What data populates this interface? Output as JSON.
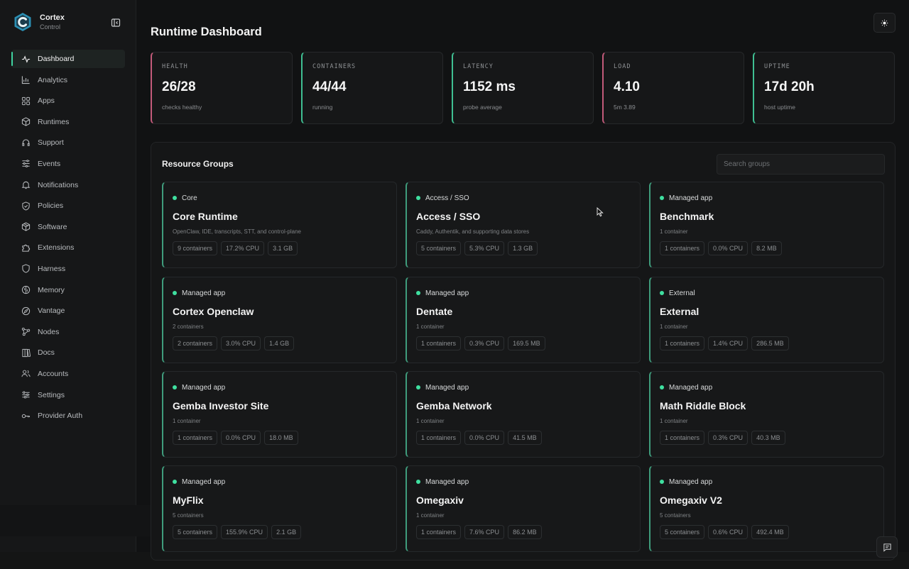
{
  "app": {
    "name": "Cortex",
    "subtitle": "Control"
  },
  "sidebar": {
    "items": [
      {
        "label": "Dashboard",
        "icon": "activity-icon",
        "active": true
      },
      {
        "label": "Analytics",
        "icon": "chart-icon"
      },
      {
        "label": "Apps",
        "icon": "grid-icon"
      },
      {
        "label": "Runtimes",
        "icon": "box-icon"
      },
      {
        "label": "Support",
        "icon": "headset-icon"
      },
      {
        "label": "Events",
        "icon": "filter-lines-icon"
      },
      {
        "label": "Notifications",
        "icon": "bell-icon"
      },
      {
        "label": "Policies",
        "icon": "shield-check-icon"
      },
      {
        "label": "Software",
        "icon": "package-icon"
      },
      {
        "label": "Extensions",
        "icon": "puzzle-icon"
      },
      {
        "label": "Harness",
        "icon": "shield-icon"
      },
      {
        "label": "Memory",
        "icon": "brain-icon"
      },
      {
        "label": "Vantage",
        "icon": "compass-icon"
      },
      {
        "label": "Nodes",
        "icon": "nodes-icon"
      },
      {
        "label": "Docs",
        "icon": "book-icon"
      },
      {
        "label": "Accounts",
        "icon": "users-icon"
      },
      {
        "label": "Settings",
        "icon": "sliders-icon"
      },
      {
        "label": "Provider Auth",
        "icon": "key-icon"
      }
    ]
  },
  "header": {
    "title": "Runtime Dashboard",
    "theme_icon": "sun-icon"
  },
  "stats": [
    {
      "label": "HEALTH",
      "value": "26/28",
      "sub": "checks healthy",
      "accent": "#c25a7a"
    },
    {
      "label": "CONTAINERS",
      "value": "44/44",
      "sub": "running",
      "accent": "#3fbf92"
    },
    {
      "label": "LATENCY",
      "value": "1152 ms",
      "sub": "probe average",
      "accent": "#3fbf92"
    },
    {
      "label": "LOAD",
      "value": "4.10",
      "sub": "5m 3.89",
      "accent": "#c25a7a"
    },
    {
      "label": "UPTIME",
      "value": "17d 20h",
      "sub": "host uptime",
      "accent": "#3fbf92"
    }
  ],
  "resource_groups": {
    "title": "Resource Groups",
    "search_placeholder": "Search groups",
    "cards": [
      {
        "tag": "Core",
        "title": "Core Runtime",
        "desc": "OpenClaw, IDE, transcripts, STT, and control-plane",
        "containers": "9 containers",
        "cpu": "17.2% CPU",
        "mem": "3.1 GB"
      },
      {
        "tag": "Access / SSO",
        "title": "Access / SSO",
        "desc": "Caddy, Authentik, and supporting data stores",
        "containers": "5 containers",
        "cpu": "5.3% CPU",
        "mem": "1.3 GB"
      },
      {
        "tag": "Managed app",
        "title": "Benchmark",
        "desc": "1 container",
        "containers": "1 containers",
        "cpu": "0.0% CPU",
        "mem": "8.2 MB"
      },
      {
        "tag": "Managed app",
        "title": "Cortex Openclaw",
        "desc": "2 containers",
        "containers": "2 containers",
        "cpu": "3.0% CPU",
        "mem": "1.4 GB"
      },
      {
        "tag": "Managed app",
        "title": "Dentate",
        "desc": "1 container",
        "containers": "1 containers",
        "cpu": "0.3% CPU",
        "mem": "169.5 MB"
      },
      {
        "tag": "External",
        "title": "External",
        "desc": "1 container",
        "containers": "1 containers",
        "cpu": "1.4% CPU",
        "mem": "286.5 MB"
      },
      {
        "tag": "Managed app",
        "title": "Gemba Investor Site",
        "desc": "1 container",
        "containers": "1 containers",
        "cpu": "0.0% CPU",
        "mem": "18.0 MB"
      },
      {
        "tag": "Managed app",
        "title": "Gemba Network",
        "desc": "1 container",
        "containers": "1 containers",
        "cpu": "0.0% CPU",
        "mem": "41.5 MB"
      },
      {
        "tag": "Managed app",
        "title": "Math Riddle Block",
        "desc": "1 container",
        "containers": "1 containers",
        "cpu": "0.3% CPU",
        "mem": "40.3 MB"
      },
      {
        "tag": "Managed app",
        "title": "MyFlix",
        "desc": "5 containers",
        "containers": "5 containers",
        "cpu": "155.9% CPU",
        "mem": "2.1 GB"
      },
      {
        "tag": "Managed app",
        "title": "Omegaxiv",
        "desc": "1 container",
        "containers": "1 containers",
        "cpu": "7.6% CPU",
        "mem": "86.2 MB"
      },
      {
        "tag": "Managed app",
        "title": "Omegaxiv V2",
        "desc": "5 containers",
        "containers": "5 containers",
        "cpu": "0.6% CPU",
        "mem": "492.4 MB"
      }
    ]
  },
  "colors": {
    "accent_green": "#3fe0a0",
    "accent_pink": "#c25a7a",
    "background": "#111213"
  }
}
